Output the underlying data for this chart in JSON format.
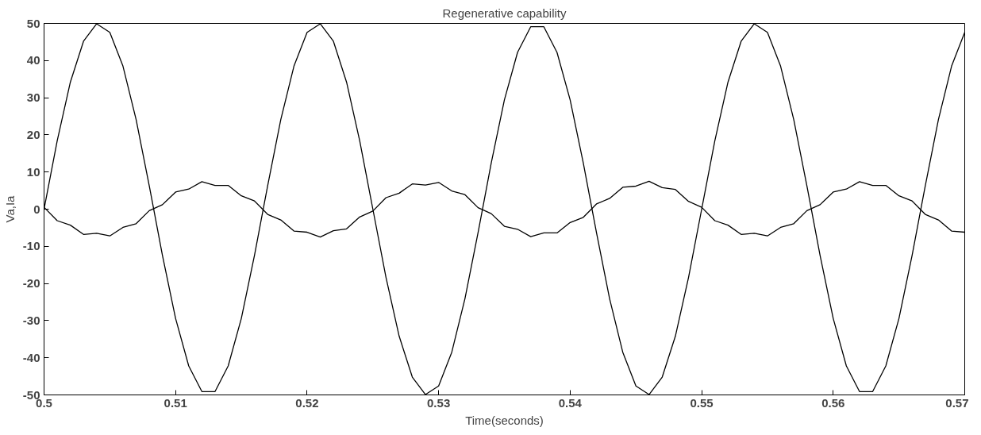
{
  "chart_data": {
    "type": "line",
    "title": "Regenerative capability",
    "xlabel": "Time(seconds)",
    "ylabel": "Va,Ia",
    "x": [
      0.5,
      0.501,
      0.502,
      0.503,
      0.504,
      0.505,
      0.506,
      0.507,
      0.508,
      0.509,
      0.51,
      0.511,
      0.512,
      0.513,
      0.514,
      0.515,
      0.516,
      0.517,
      0.518,
      0.519,
      0.52,
      0.521,
      0.522,
      0.523,
      0.524,
      0.525,
      0.526,
      0.527,
      0.528,
      0.529,
      0.53,
      0.531,
      0.532,
      0.533,
      0.534,
      0.535,
      0.536,
      0.537,
      0.538,
      0.539,
      0.54,
      0.541,
      0.542,
      0.543,
      0.544,
      0.545,
      0.546,
      0.547,
      0.548,
      0.549,
      0.55,
      0.551,
      0.552,
      0.553,
      0.554,
      0.555,
      0.556,
      0.557,
      0.558,
      0.559,
      0.56,
      0.561,
      0.562,
      0.563,
      0.564,
      0.565,
      0.566,
      0.567,
      0.568,
      0.569,
      0.57
    ],
    "series": [
      {
        "color": "#000000",
        "values": [
          0,
          18.4,
          34.2,
          45.2,
          49.9,
          47.6,
          38.5,
          24.1,
          6.3,
          -12.4,
          -29.4,
          -42.2,
          -49.1,
          -49.1,
          -42.2,
          -29.4,
          -12.4,
          6.3,
          24.1,
          38.5,
          47.6,
          49.9,
          45.2,
          34.2,
          18.4,
          0,
          -18.4,
          -34.2,
          -45.2,
          -49.9,
          -47.6,
          -38.5,
          -24.1,
          -6.3,
          12.4,
          29.4,
          42.2,
          49.1,
          49.1,
          42.2,
          29.4,
          12.4,
          -6.3,
          -24.1,
          -38.5,
          -47.6,
          -49.9,
          -45.2,
          -34.2,
          -18.4,
          0,
          18.4,
          34.2,
          45.2,
          49.9,
          47.6,
          38.5,
          24.1,
          6.3,
          -12.4,
          -29.4,
          -42.2,
          -49.1,
          -49.1,
          -42.2,
          -29.4,
          -12.4,
          6.3,
          24.1,
          38.5,
          47.6
        ]
      },
      {
        "color": "#000000",
        "values": [
          0.5,
          -3.1,
          -4.3,
          -6.8,
          -6.5,
          -7.2,
          -4.9,
          -3.9,
          -0.4,
          1.2,
          4.6,
          5.4,
          7.4,
          6.4,
          6.4,
          3.6,
          2.2,
          -1.4,
          -2.9,
          -5.9,
          -6.2,
          -7.5,
          -5.8,
          -5.3,
          -2.1,
          -0.5,
          3.1,
          4.3,
          6.8,
          6.5,
          7.2,
          4.9,
          3.9,
          0.4,
          -1.2,
          -4.6,
          -5.4,
          -7.4,
          -6.4,
          -6.4,
          -3.6,
          -2.2,
          1.4,
          2.9,
          5.9,
          6.2,
          7.5,
          5.8,
          5.3,
          2.1,
          0.5,
          -3.1,
          -4.3,
          -6.8,
          -6.5,
          -7.2,
          -4.9,
          -3.9,
          -0.4,
          1.2,
          4.6,
          5.4,
          7.4,
          6.4,
          6.4,
          3.6,
          2.2,
          -1.4,
          -2.9,
          -5.9,
          -6.2
        ]
      }
    ],
    "xlim": [
      0.5,
      0.57
    ],
    "xticks": [
      0.5,
      0.51,
      0.52,
      0.53,
      0.54,
      0.55,
      0.56,
      0.57
    ],
    "ylim": [
      -50,
      50
    ],
    "yticks": [
      -50,
      -40,
      -30,
      -20,
      -10,
      0,
      10,
      20,
      30,
      40,
      50
    ],
    "grid": false,
    "marker": "none",
    "line_style": "solid"
  }
}
